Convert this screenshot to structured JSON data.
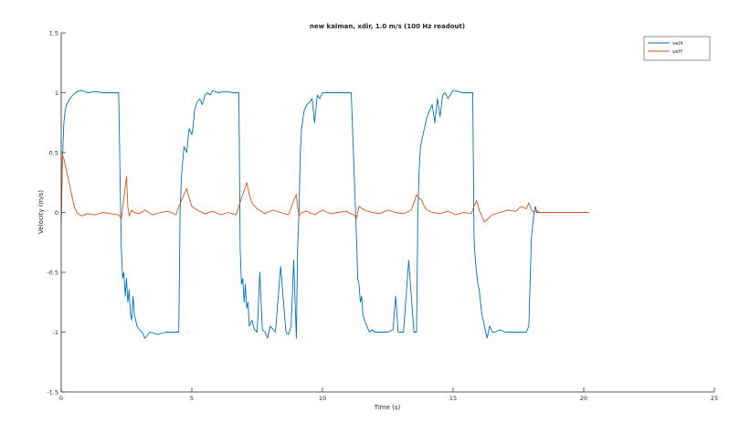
{
  "chart_data": {
    "type": "line",
    "title": "new kalman, xdir, 1.0 m/s (100 Hz readout)",
    "xlabel": "Time (s)",
    "ylabel": "Velocity (m/s)",
    "xlim": [
      0,
      25
    ],
    "ylim": [
      -1.5,
      1.5
    ],
    "xticks": [
      0,
      5,
      10,
      15,
      20,
      25
    ],
    "xtick_labels": [
      "0",
      "5",
      "10",
      "15",
      "20",
      "25"
    ],
    "yticks": [
      -1.5,
      -1,
      -0.5,
      0,
      0.5,
      1,
      1.5
    ],
    "ytick_labels": [
      "-1.5",
      "-1",
      "-0.5",
      "0",
      "0.5",
      "1",
      "1.5"
    ],
    "grid": false,
    "legend_position": "top-right",
    "series": [
      {
        "name": "velX",
        "color": "#0072BD",
        "x": [
          0,
          0.05,
          0.1,
          0.15,
          0.2,
          0.3,
          0.4,
          0.5,
          0.6,
          0.8,
          1.0,
          1.3,
          1.6,
          1.9,
          2.2,
          2.3,
          2.35,
          2.4,
          2.45,
          2.5,
          2.55,
          2.6,
          2.65,
          2.7,
          2.75,
          2.8,
          2.9,
          3.0,
          3.1,
          3.2,
          3.4,
          3.7,
          4.0,
          4.3,
          4.5,
          4.55,
          4.6,
          4.7,
          4.8,
          4.9,
          5.0,
          5.05,
          5.1,
          5.2,
          5.3,
          5.4,
          5.5,
          5.6,
          5.7,
          5.8,
          6.0,
          6.3,
          6.6,
          6.8,
          6.85,
          6.9,
          6.95,
          7.0,
          7.05,
          7.1,
          7.15,
          7.2,
          7.3,
          7.4,
          7.5,
          7.6,
          7.7,
          7.8,
          7.9,
          8.0,
          8.2,
          8.4,
          8.6,
          8.7,
          8.8,
          8.9,
          9.0,
          9.05,
          9.1,
          9.15,
          9.2,
          9.3,
          9.4,
          9.5,
          9.6,
          9.7,
          9.8,
          9.9,
          10.0,
          10.2,
          10.5,
          10.8,
          11.1,
          11.3,
          11.35,
          11.4,
          11.45,
          11.5,
          11.55,
          11.6,
          11.7,
          11.8,
          11.9,
          12.0,
          12.2,
          12.5,
          12.7,
          12.8,
          12.9,
          13.0,
          13.1,
          13.3,
          13.5,
          13.6,
          13.65,
          13.7,
          13.75,
          13.8,
          13.9,
          14.0,
          14.1,
          14.2,
          14.3,
          14.4,
          14.5,
          14.6,
          14.7,
          14.8,
          15.0,
          15.2,
          15.4,
          15.6,
          15.75,
          15.8,
          15.85,
          15.9,
          15.95,
          16.0,
          16.05,
          16.1,
          16.2,
          16.3,
          16.4,
          16.5,
          16.6,
          16.8,
          17.0,
          17.2,
          17.4,
          17.6,
          17.8,
          17.9,
          18.0,
          18.1,
          18.15,
          18.2,
          18.3
        ],
        "values": [
          0.0,
          0.45,
          0.75,
          0.85,
          0.9,
          0.94,
          0.97,
          0.99,
          1.01,
          1.02,
          1.0,
          1.01,
          1.0,
          1.0,
          1.0,
          -0.3,
          -0.55,
          -0.5,
          -0.7,
          -0.55,
          -0.75,
          -0.65,
          -0.85,
          -0.9,
          -0.7,
          -0.85,
          -0.95,
          -0.98,
          -1.0,
          -1.05,
          -1.0,
          -1.02,
          -1.0,
          -1.0,
          -1.0,
          0.0,
          0.3,
          0.55,
          0.5,
          0.7,
          0.65,
          0.72,
          0.85,
          0.92,
          0.95,
          0.9,
          0.98,
          1.0,
          0.98,
          1.02,
          1.0,
          1.01,
          1.0,
          1.0,
          -0.3,
          -0.6,
          -0.55,
          -0.75,
          -0.6,
          -0.8,
          -0.75,
          -0.95,
          -0.9,
          -0.98,
          -1.0,
          -0.5,
          -0.98,
          -1.0,
          -1.05,
          -0.95,
          -1.0,
          -0.45,
          -1.0,
          -1.02,
          -0.95,
          -0.4,
          -1.05,
          -0.3,
          0.0,
          0.5,
          0.7,
          0.85,
          0.9,
          0.92,
          0.95,
          0.75,
          0.98,
          0.95,
          1.0,
          1.0,
          1.0,
          1.0,
          1.0,
          -0.2,
          -0.55,
          -0.6,
          -0.75,
          -0.7,
          -0.85,
          -0.9,
          -0.95,
          -1.0,
          -0.98,
          -1.0,
          -1.0,
          -1.0,
          -0.98,
          -0.7,
          -1.0,
          -1.0,
          -1.0,
          -0.4,
          -1.0,
          -1.0,
          0.0,
          0.35,
          0.55,
          0.6,
          0.7,
          0.8,
          0.85,
          0.9,
          0.75,
          0.95,
          0.8,
          0.98,
          1.0,
          0.95,
          1.02,
          1.01,
          1.0,
          1.0,
          1.0,
          -0.2,
          -0.4,
          -0.5,
          -0.6,
          -0.65,
          -0.75,
          -0.85,
          -0.95,
          -1.05,
          -0.95,
          -1.0,
          -1.0,
          -0.98,
          -1.0,
          -1.0,
          -1.0,
          -1.0,
          -1.0,
          -0.95,
          -0.2,
          0.0,
          0.05,
          0.0,
          0.0
        ]
      },
      {
        "name": "velY",
        "color": "#D95319",
        "x": [
          0,
          0.05,
          0.1,
          0.15,
          0.2,
          0.3,
          0.4,
          0.5,
          0.6,
          0.7,
          0.8,
          1.0,
          1.3,
          1.6,
          1.9,
          2.2,
          2.3,
          2.4,
          2.5,
          2.55,
          2.6,
          2.7,
          2.8,
          3.0,
          3.2,
          3.5,
          3.8,
          4.1,
          4.4,
          4.5,
          4.6,
          4.7,
          4.8,
          4.9,
          5.0,
          5.2,
          5.5,
          5.8,
          6.1,
          6.4,
          6.7,
          6.8,
          6.9,
          7.0,
          7.1,
          7.2,
          7.3,
          7.5,
          7.8,
          8.1,
          8.4,
          8.7,
          8.9,
          9.0,
          9.05,
          9.1,
          9.2,
          9.4,
          9.7,
          10.0,
          10.3,
          10.6,
          10.9,
          11.2,
          11.3,
          11.4,
          11.6,
          11.9,
          12.2,
          12.5,
          12.8,
          13.1,
          13.4,
          13.5,
          13.6,
          13.7,
          13.8,
          13.9,
          14.0,
          14.2,
          14.5,
          14.8,
          15.1,
          15.4,
          15.7,
          15.8,
          15.9,
          16.0,
          16.2,
          16.5,
          16.8,
          17.1,
          17.4,
          17.6,
          17.8,
          17.9,
          18.0,
          18.1,
          18.2,
          18.3,
          18.6,
          19.0,
          19.5,
          20.0,
          20.2
        ],
        "values": [
          -0.1,
          0.48,
          0.45,
          0.4,
          0.35,
          0.25,
          0.15,
          0.05,
          0.0,
          -0.02,
          -0.03,
          -0.01,
          -0.02,
          0.0,
          -0.01,
          -0.02,
          -0.05,
          0.12,
          0.3,
          0.05,
          -0.03,
          0.02,
          0.0,
          -0.01,
          0.02,
          -0.02,
          0.0,
          0.01,
          -0.02,
          0.05,
          0.1,
          0.15,
          0.2,
          0.12,
          0.05,
          0.02,
          -0.01,
          0.01,
          -0.02,
          0.0,
          -0.02,
          0.05,
          0.12,
          0.18,
          0.25,
          0.15,
          0.08,
          0.03,
          -0.01,
          0.02,
          0.0,
          -0.02,
          0.1,
          0.15,
          0.05,
          -0.03,
          0.0,
          0.01,
          -0.02,
          0.02,
          -0.01,
          0.0,
          0.01,
          -0.02,
          -0.05,
          0.05,
          0.02,
          0.0,
          -0.01,
          0.02,
          0.0,
          -0.01,
          0.02,
          0.08,
          0.15,
          0.12,
          0.1,
          0.05,
          0.02,
          0.0,
          -0.01,
          0.01,
          -0.02,
          0.0,
          -0.01,
          0.05,
          0.1,
          0.02,
          -0.08,
          -0.02,
          0.0,
          0.02,
          0.01,
          0.05,
          0.03,
          0.08,
          0.02,
          0.0,
          0.02,
          0.0,
          0.0,
          0.0,
          0.0,
          0.0,
          0.0
        ]
      }
    ]
  }
}
